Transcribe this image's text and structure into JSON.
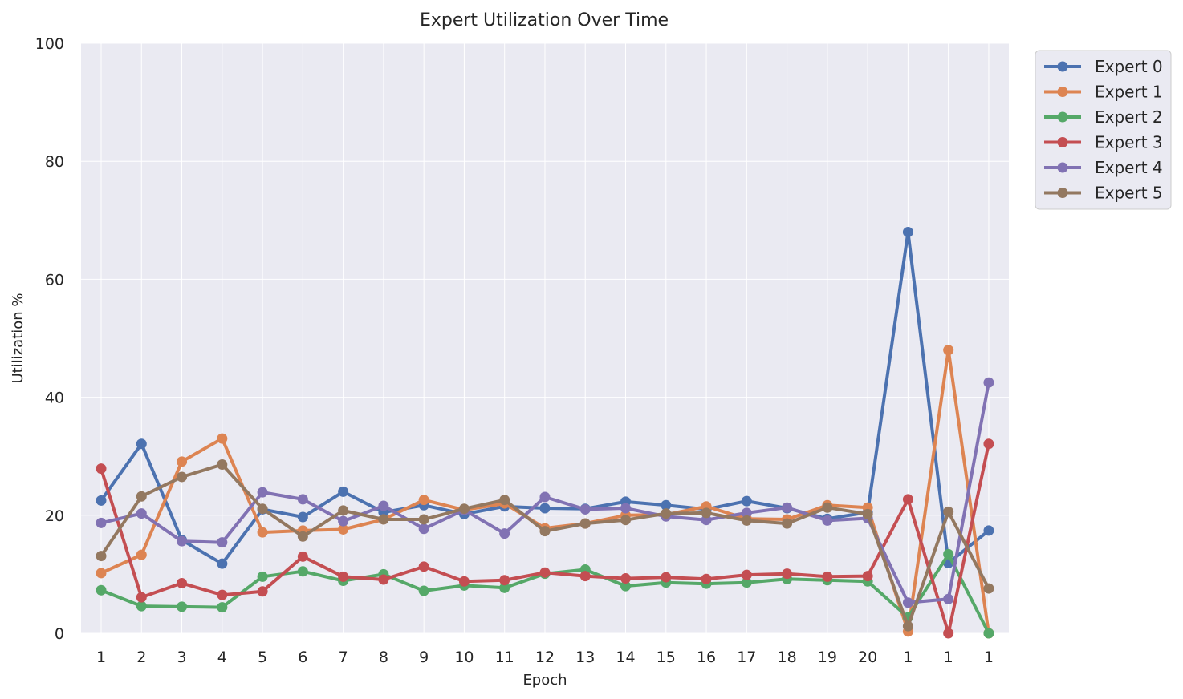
{
  "chart_data": {
    "type": "line",
    "title": "Expert Utilization Over Time",
    "xlabel": "Epoch",
    "ylabel": "Utilization %",
    "ylim": [
      0,
      100
    ],
    "yticks": [
      "0",
      "20",
      "40",
      "60",
      "80",
      "100"
    ],
    "categories": [
      "1",
      "2",
      "3",
      "4",
      "5",
      "6",
      "7",
      "8",
      "9",
      "10",
      "11",
      "12",
      "13",
      "14",
      "15",
      "16",
      "17",
      "18",
      "19",
      "20",
      "1",
      "1",
      "1"
    ],
    "grid": true,
    "legend_position": "outside-top-right",
    "series": [
      {
        "name": "Expert 0",
        "color": "#4c72b0",
        "values": [
          22.5,
          32.1,
          15.8,
          11.8,
          21.0,
          19.7,
          24.0,
          20.5,
          21.7,
          20.2,
          21.5,
          21.2,
          21.1,
          22.3,
          21.7,
          21.0,
          22.4,
          21.2,
          19.4,
          20.5,
          68.0,
          11.9,
          17.4
        ]
      },
      {
        "name": "Expert 1",
        "color": "#dd8452",
        "values": [
          10.2,
          13.3,
          29.1,
          33.0,
          17.1,
          17.4,
          17.6,
          19.3,
          22.6,
          20.9,
          22.0,
          17.8,
          18.6,
          20.0,
          20.1,
          21.5,
          19.4,
          19.3,
          21.7,
          21.3,
          0.3,
          48.0,
          0.0
        ]
      },
      {
        "name": "Expert 2",
        "color": "#55a868",
        "values": [
          7.3,
          4.6,
          4.5,
          4.4,
          9.6,
          10.5,
          8.9,
          10.0,
          7.2,
          8.1,
          7.7,
          10.1,
          10.8,
          8.0,
          8.6,
          8.4,
          8.6,
          9.2,
          9.0,
          8.8,
          2.7,
          13.4,
          0.0
        ]
      },
      {
        "name": "Expert 3",
        "color": "#c44e52",
        "values": [
          27.9,
          6.1,
          8.5,
          6.5,
          7.1,
          13.0,
          9.6,
          9.1,
          11.3,
          8.8,
          9.0,
          10.3,
          9.7,
          9.3,
          9.5,
          9.2,
          9.9,
          10.1,
          9.6,
          9.7,
          22.7,
          0.0,
          32.1
        ]
      },
      {
        "name": "Expert 4",
        "color": "#8172b3",
        "values": [
          18.7,
          20.3,
          15.6,
          15.4,
          23.9,
          22.7,
          19.0,
          21.6,
          17.7,
          20.9,
          16.9,
          23.1,
          21.0,
          21.2,
          19.8,
          19.2,
          20.4,
          21.3,
          19.1,
          19.5,
          5.2,
          5.8,
          42.5
        ]
      },
      {
        "name": "Expert 5",
        "color": "#937860",
        "values": [
          13.1,
          23.2,
          26.5,
          28.6,
          21.1,
          16.4,
          20.8,
          19.3,
          19.3,
          21.1,
          22.6,
          17.3,
          18.6,
          19.2,
          20.3,
          20.4,
          19.1,
          18.6,
          21.3,
          20.2,
          1.2,
          20.6,
          7.6
        ]
      }
    ]
  }
}
